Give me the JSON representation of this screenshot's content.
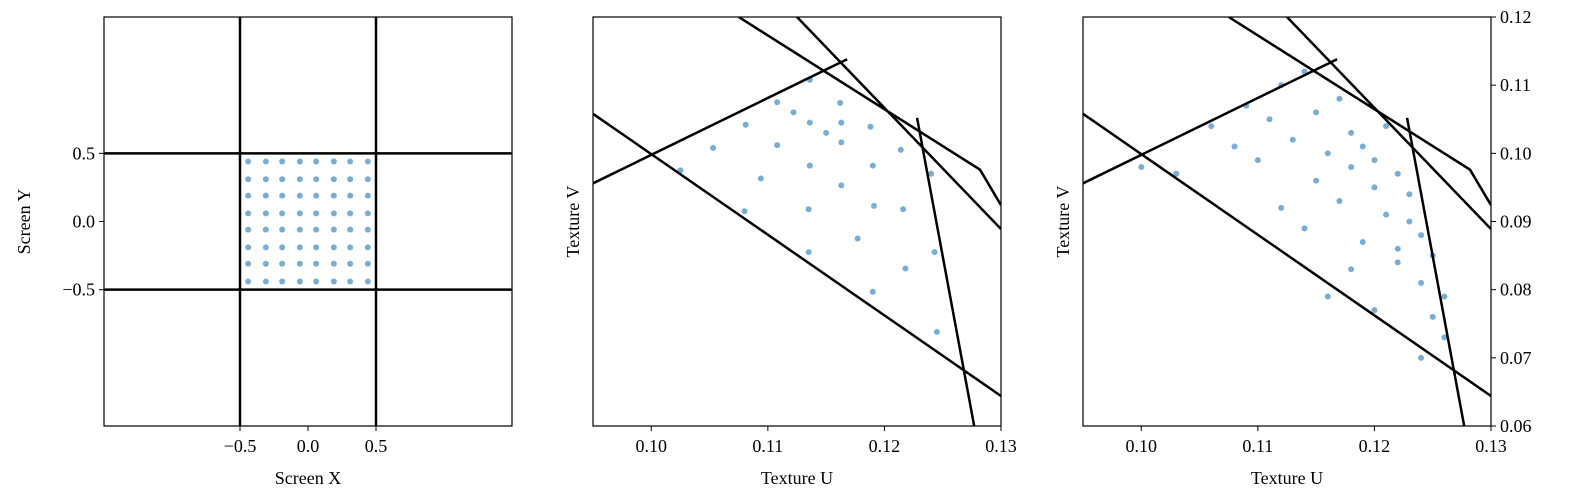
{
  "chart_data": [
    {
      "type": "scatter",
      "xlabel": "Screen X",
      "ylabel": "Screen Y",
      "yaxis_side": "left",
      "xlim": [
        -1.5,
        1.5
      ],
      "ylim": [
        -1.5,
        1.5
      ],
      "xticks": [
        {
          "value": -0.5,
          "label": "−0.5"
        },
        {
          "value": 0,
          "label": "0.0"
        },
        0.5
      ],
      "yticks": [
        {
          "value": -0.5,
          "label": "−0.5"
        },
        {
          "value": 0,
          "label": "0.0"
        },
        0.5
      ],
      "points": {
        "color": "#1f77b4",
        "x": [
          -0.44,
          -0.31,
          -0.19,
          -0.06,
          0.06,
          0.19,
          0.31,
          0.44,
          -0.44,
          -0.31,
          -0.19,
          -0.06,
          0.06,
          0.19,
          0.31,
          0.44,
          -0.44,
          -0.31,
          -0.19,
          -0.06,
          0.06,
          0.19,
          0.31,
          0.44,
          -0.44,
          -0.31,
          -0.19,
          -0.06,
          0.06,
          0.19,
          0.31,
          0.44,
          -0.44,
          -0.31,
          -0.19,
          -0.06,
          0.06,
          0.19,
          0.31,
          0.44,
          -0.44,
          -0.31,
          -0.19,
          -0.06,
          0.06,
          0.19,
          0.31,
          0.44,
          -0.44,
          -0.31,
          -0.19,
          -0.06,
          0.06,
          0.19,
          0.31,
          0.44,
          -0.44,
          -0.31,
          -0.19,
          -0.06,
          0.06,
          0.19,
          0.31,
          0.44
        ],
        "y": [
          -0.44,
          -0.44,
          -0.44,
          -0.44,
          -0.44,
          -0.44,
          -0.44,
          -0.44,
          -0.31,
          -0.31,
          -0.31,
          -0.31,
          -0.31,
          -0.31,
          -0.31,
          -0.31,
          -0.19,
          -0.19,
          -0.19,
          -0.19,
          -0.19,
          -0.19,
          -0.19,
          -0.19,
          -0.06,
          -0.06,
          -0.06,
          -0.06,
          -0.06,
          -0.06,
          -0.06,
          -0.06,
          0.06,
          0.06,
          0.06,
          0.06,
          0.06,
          0.06,
          0.06,
          0.06,
          0.19,
          0.19,
          0.19,
          0.19,
          0.19,
          0.19,
          0.19,
          0.19,
          0.31,
          0.31,
          0.31,
          0.31,
          0.31,
          0.31,
          0.31,
          0.31,
          0.44,
          0.44,
          0.44,
          0.44,
          0.44,
          0.44,
          0.44,
          0.44
        ]
      },
      "lines": {
        "color": "#000000",
        "x": [
          -0.5,
          -0.5,
          null,
          0.5,
          0.5,
          null,
          -1.5,
          1.5,
          null,
          -1.5,
          1.5
        ],
        "y": [
          -1.5,
          1.5,
          null,
          -1.5,
          1.5,
          null,
          -0.5,
          -0.5,
          null,
          0.5,
          0.5
        ]
      }
    },
    {
      "type": "scatter",
      "xlabel": "Texture U",
      "ylabel": "Texture V",
      "yaxis_side": "left",
      "xlim": [
        0.095,
        0.13
      ],
      "ylim": [
        0.06,
        0.12
      ],
      "xticks": [
        {
          "value": 0.1,
          "label": "0.10"
        },
        0.11,
        0.12,
        0.13
      ],
      "points": {
        "color": "#1f77b4",
        "x": [
          0.1136,
          0.1108,
          0.1081,
          0.1053,
          0.1025,
          0.1122,
          0.1108,
          0.1094,
          0.108,
          0.1136,
          0.1136,
          0.1135,
          0.1135,
          0.115,
          0.1163,
          0.1177,
          0.119,
          0.1163,
          0.1191,
          0.1218,
          0.1245,
          0.1163,
          0.119,
          0.1216,
          0.1243,
          0.1162,
          0.1188,
          0.1214,
          0.124
        ],
        "y": [
          0.1108,
          0.1075,
          0.1042,
          0.1008,
          0.0975,
          0.106,
          0.1012,
          0.0963,
          0.0915,
          0.1045,
          0.0982,
          0.0918,
          0.0855,
          0.103,
          0.0953,
          0.0875,
          0.0797,
          0.1016,
          0.0923,
          0.0831,
          0.0738,
          0.1045,
          0.0982,
          0.0918,
          0.0855,
          0.1074,
          0.1039,
          0.1005,
          0.097
        ]
      },
      "lines": {
        "color": "#000000",
        "x": [
          0.095,
          0.13,
          null,
          0.095,
          0.1168,
          null,
          0.1075,
          0.1282,
          0.13,
          null,
          0.1125,
          0.13,
          null,
          0.1228,
          0.1277
        ],
        "y": [
          0.1058,
          0.0644,
          null,
          0.0956,
          0.1138,
          null,
          0.12,
          0.0976,
          0.0924,
          null,
          0.12,
          0.0889,
          null,
          0.1052,
          0.06
        ]
      }
    },
    {
      "type": "scatter",
      "xlabel": "Texture U",
      "ylabel": "Texture V",
      "yaxis_side": "right",
      "xlim": [
        0.095,
        0.13
      ],
      "ylim": [
        0.06,
        0.12
      ],
      "xticks": [
        {
          "value": 0.1,
          "label": "0.10"
        },
        0.11,
        0.12,
        0.13
      ],
      "yticks": [
        0.06,
        0.07,
        0.08,
        0.09,
        {
          "value": 0.1,
          "label": "0.10"
        },
        0.11,
        {
          "value": 0.12,
          "label": "0.12"
        }
      ],
      "points": {
        "color": "#1f77b4",
        "x": [
          0.1,
          0.103,
          0.106,
          0.108,
          0.109,
          0.11,
          0.111,
          0.112,
          0.113,
          0.114,
          0.115,
          0.115,
          0.116,
          0.117,
          0.117,
          0.118,
          0.118,
          0.119,
          0.119,
          0.12,
          0.12,
          0.121,
          0.121,
          0.122,
          0.122,
          0.123,
          0.123,
          0.124,
          0.124,
          0.125,
          0.125,
          0.126,
          0.112,
          0.114,
          0.116,
          0.118,
          0.12,
          0.122,
          0.124,
          0.126
        ],
        "y": [
          0.098,
          0.097,
          0.104,
          0.101,
          0.107,
          0.099,
          0.105,
          0.11,
          0.102,
          0.112,
          0.096,
          0.106,
          0.1,
          0.093,
          0.108,
          0.098,
          0.103,
          0.087,
          0.101,
          0.095,
          0.099,
          0.091,
          0.104,
          0.084,
          0.097,
          0.09,
          0.094,
          0.081,
          0.088,
          0.076,
          0.085,
          0.073,
          0.092,
          0.089,
          0.079,
          0.083,
          0.077,
          0.086,
          0.07,
          0.079
        ]
      },
      "lines": {
        "color": "#000000",
        "x": [
          0.095,
          0.13,
          null,
          0.095,
          0.1168,
          null,
          0.1075,
          0.1282,
          0.13,
          null,
          0.1125,
          0.13,
          null,
          0.1228,
          0.1277
        ],
        "y": [
          0.1058,
          0.0644,
          null,
          0.0956,
          0.1138,
          null,
          0.12,
          0.0976,
          0.0924,
          null,
          0.12,
          0.0889,
          null,
          0.1052,
          0.06
        ]
      }
    }
  ]
}
